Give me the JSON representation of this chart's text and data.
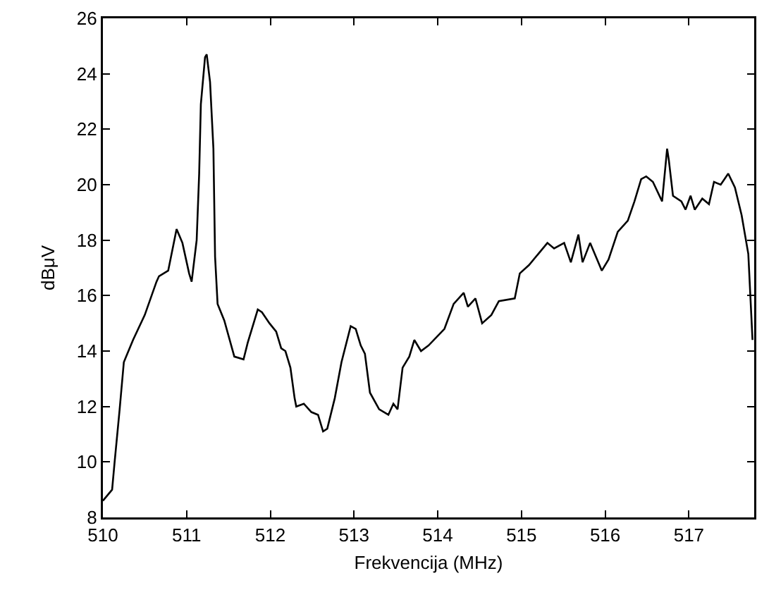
{
  "chart_data": {
    "type": "line",
    "xlabel": "Frekvencija (MHz)",
    "ylabel": "dBμV",
    "xlim": [
      510,
      517.78
    ],
    "xticks": [
      510,
      511,
      512,
      513,
      514,
      515,
      516,
      517
    ],
    "ylim": [
      8,
      26
    ],
    "yticks": [
      8,
      10,
      12,
      14,
      16,
      18,
      20,
      22,
      24,
      26
    ],
    "grid": false,
    "marker": "none",
    "line_style": "solid",
    "series": [
      {
        "color": "#000000",
        "x": [
          510,
          510.11,
          510.14,
          510.2,
          510.25,
          510.36,
          510.5,
          510.64,
          510.67,
          510.78,
          510.88,
          510.95,
          511.03,
          511.06,
          511.12,
          511.15,
          511.17,
          511.22,
          511.24,
          511.28,
          511.32,
          511.34,
          511.37,
          511.45,
          511.57,
          511.68,
          511.73,
          511.85,
          511.9,
          511.99,
          512.07,
          512.13,
          512.18,
          512.24,
          512.29,
          512.31,
          512.4,
          512.49,
          512.57,
          512.63,
          512.68,
          512.77,
          512.85,
          512.96,
          513.02,
          513.08,
          513.13,
          513.19,
          513.3,
          513.41,
          513.47,
          513.52,
          513.58,
          513.66,
          513.72,
          513.8,
          513.89,
          514.08,
          514.19,
          514.31,
          514.36,
          514.45,
          514.53,
          514.64,
          514.73,
          514.92,
          514.98,
          515.09,
          515.2,
          515.31,
          515.39,
          515.51,
          515.59,
          515.68,
          515.73,
          515.82,
          515.96,
          516.04,
          516.15,
          516.27,
          516.35,
          516.43,
          516.49,
          516.57,
          516.68,
          516.74,
          516.76,
          516.81,
          516.91,
          516.96,
          517.02,
          517.07,
          517.16,
          517.24,
          517.3,
          517.38,
          517.47,
          517.55,
          517.63,
          517.71,
          517.76
        ],
        "values": [
          8.6,
          9.0,
          10.0,
          11.9,
          13.6,
          14.4,
          15.3,
          16.5,
          16.7,
          16.9,
          18.4,
          17.9,
          16.8,
          16.5,
          18.0,
          20.4,
          22.9,
          24.6,
          24.7,
          23.7,
          21.3,
          17.4,
          15.7,
          15.1,
          13.8,
          13.7,
          14.3,
          15.5,
          15.4,
          15.0,
          14.7,
          14.1,
          14.0,
          13.4,
          12.3,
          12.0,
          12.1,
          11.8,
          11.7,
          11.1,
          11.2,
          12.3,
          13.6,
          14.9,
          14.8,
          14.2,
          13.9,
          12.5,
          11.9,
          11.7,
          12.1,
          11.9,
          13.4,
          13.8,
          14.4,
          14.0,
          14.2,
          14.8,
          15.7,
          16.1,
          15.6,
          15.9,
          15.0,
          15.3,
          15.8,
          15.9,
          16.8,
          17.1,
          17.5,
          17.9,
          17.7,
          17.9,
          17.2,
          18.2,
          17.2,
          17.9,
          16.9,
          17.3,
          18.3,
          18.7,
          19.4,
          20.2,
          20.3,
          20.1,
          19.4,
          21.3,
          20.9,
          19.6,
          19.4,
          19.1,
          19.6,
          19.1,
          19.5,
          19.3,
          20.1,
          20.0,
          20.4,
          19.9,
          18.9,
          17.5,
          14.4
        ]
      }
    ]
  }
}
